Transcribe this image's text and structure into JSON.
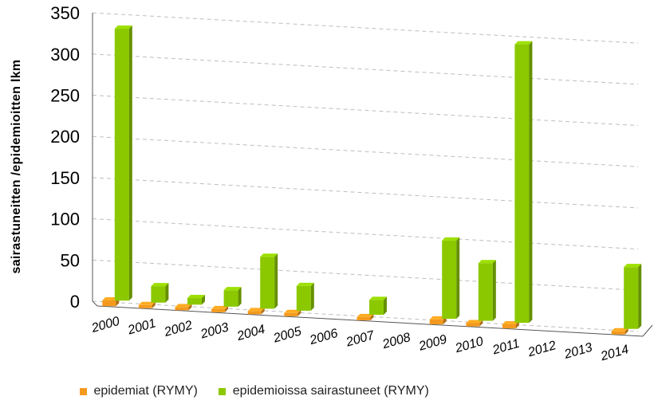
{
  "chart_data": {
    "type": "bar",
    "title": "",
    "xlabel": "",
    "ylabel": "sairastuneitten  /epidemioitten lkm",
    "ylim": [
      0,
      350
    ],
    "yticks": [
      0,
      50,
      100,
      150,
      200,
      250,
      300,
      350
    ],
    "categories": [
      "2000",
      "2001",
      "2002",
      "2003",
      "2004",
      "2005",
      "2006",
      "2007",
      "2008",
      "2009",
      "2010",
      "2011",
      "2012",
      "2013",
      "2014"
    ],
    "grid": true,
    "legend_position": "bottom",
    "series": [
      {
        "name": "epidemiat (RYMY)",
        "color": "#f39a1e",
        "values": [
          7,
          2,
          1,
          2,
          3,
          4,
          0,
          4,
          0,
          6,
          4,
          5,
          0,
          0,
          3
        ]
      },
      {
        "name": "epidemioissa sairastuneet (RYMY)",
        "color": "#8cc800",
        "values": [
          330,
          20,
          8,
          20,
          63,
          30,
          0,
          18,
          0,
          95,
          70,
          338,
          0,
          0,
          75
        ]
      }
    ]
  }
}
